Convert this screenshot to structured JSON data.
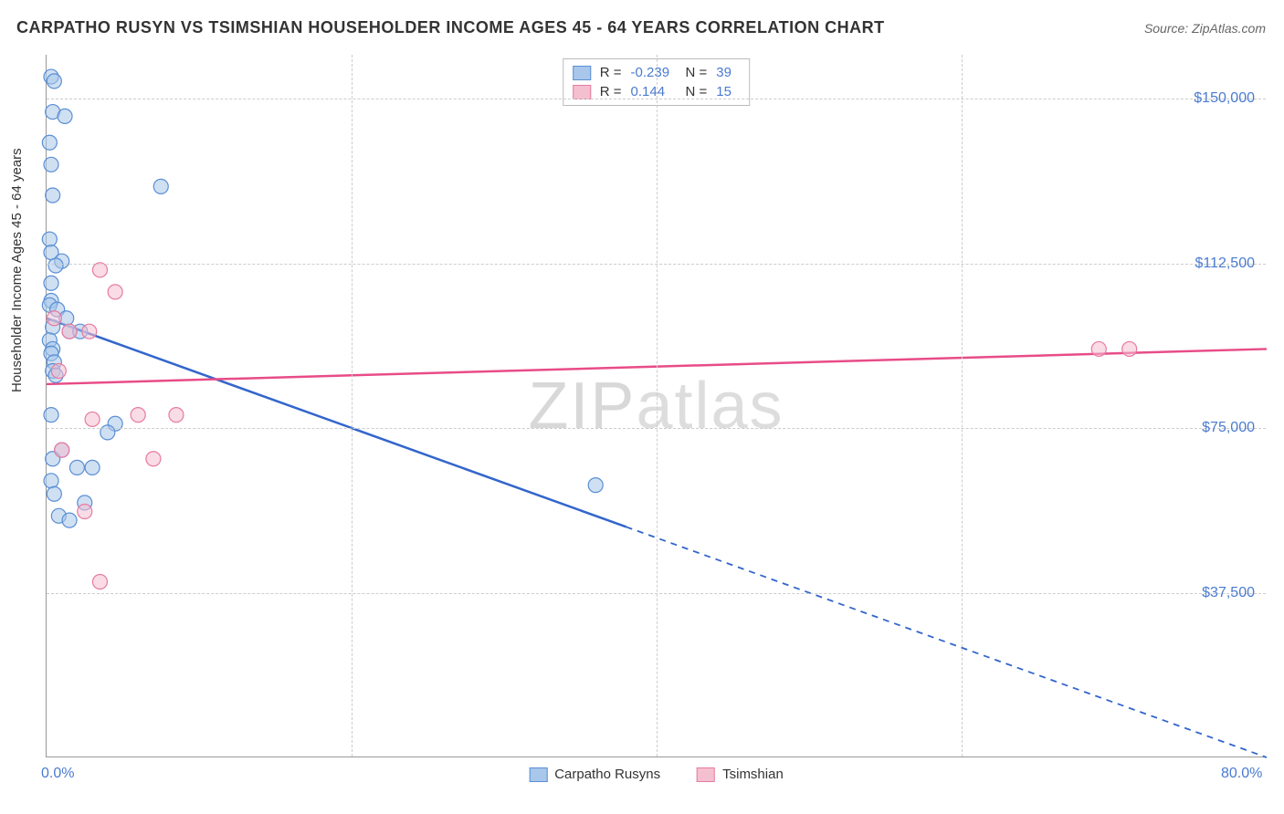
{
  "title": "CARPATHO RUSYN VS TSIMSHIAN HOUSEHOLDER INCOME AGES 45 - 64 YEARS CORRELATION CHART",
  "source": "Source: ZipAtlas.com",
  "y_axis_label": "Householder Income Ages 45 - 64 years",
  "watermark": "ZIPatlas",
  "chart": {
    "type": "scatter-with-regression",
    "xlim": [
      0,
      80
    ],
    "ylim": [
      0,
      160000
    ],
    "x_ticks": [
      {
        "v": 0,
        "label": "0.0%"
      },
      {
        "v": 80,
        "label": "80.0%"
      }
    ],
    "y_ticks": [
      {
        "v": 37500,
        "label": "$37,500"
      },
      {
        "v": 75000,
        "label": "$75,000"
      },
      {
        "v": 112500,
        "label": "$112,500"
      },
      {
        "v": 150000,
        "label": "$150,000"
      }
    ],
    "x_gridlines": [
      20,
      40,
      60
    ],
    "background_color": "#ffffff",
    "grid_color": "#cccccc",
    "marker_radius": 8,
    "marker_stroke_width": 1.2,
    "line_width": 2.5
  },
  "series": [
    {
      "name": "Carpatho Rusyns",
      "color_fill": "#a8c7ea",
      "color_stroke": "#5a8fd4",
      "line_color": "#3366cc",
      "r_value": "-0.239",
      "n_value": "39",
      "regression": {
        "x1": 0,
        "y1": 100000,
        "x2": 80,
        "y2": 0,
        "solid_until_x": 38
      },
      "points": [
        [
          0.3,
          155000
        ],
        [
          0.5,
          154000
        ],
        [
          0.4,
          147000
        ],
        [
          1.2,
          146000
        ],
        [
          0.2,
          140000
        ],
        [
          0.3,
          135000
        ],
        [
          7.5,
          130000
        ],
        [
          0.4,
          128000
        ],
        [
          0.2,
          118000
        ],
        [
          0.3,
          115000
        ],
        [
          1.0,
          113000
        ],
        [
          0.6,
          112000
        ],
        [
          0.3,
          108000
        ],
        [
          0.3,
          104000
        ],
        [
          0.2,
          103000
        ],
        [
          0.7,
          102000
        ],
        [
          1.3,
          100000
        ],
        [
          0.4,
          98000
        ],
        [
          1.5,
          97000
        ],
        [
          2.2,
          97000
        ],
        [
          0.2,
          95000
        ],
        [
          0.4,
          93000
        ],
        [
          0.3,
          92000
        ],
        [
          0.5,
          90000
        ],
        [
          0.4,
          88000
        ],
        [
          0.6,
          87000
        ],
        [
          4.5,
          76000
        ],
        [
          4.0,
          74000
        ],
        [
          1.0,
          70000
        ],
        [
          0.4,
          68000
        ],
        [
          2.0,
          66000
        ],
        [
          3.0,
          66000
        ],
        [
          0.3,
          63000
        ],
        [
          0.5,
          60000
        ],
        [
          2.5,
          58000
        ],
        [
          0.8,
          55000
        ],
        [
          1.5,
          54000
        ],
        [
          36,
          62000
        ],
        [
          0.3,
          78000
        ]
      ]
    },
    {
      "name": "Tsimshian",
      "color_fill": "#f4c0cf",
      "color_stroke": "#e77ba1",
      "line_color": "#e84c88",
      "r_value": "0.144",
      "n_value": "15",
      "regression": {
        "x1": 0,
        "y1": 85000,
        "x2": 80,
        "y2": 93000,
        "solid_until_x": 80
      },
      "points": [
        [
          3.5,
          111000
        ],
        [
          4.5,
          106000
        ],
        [
          0.5,
          100000
        ],
        [
          1.5,
          97000
        ],
        [
          2.8,
          97000
        ],
        [
          0.8,
          88000
        ],
        [
          3.0,
          77000
        ],
        [
          6.0,
          78000
        ],
        [
          8.5,
          78000
        ],
        [
          1.0,
          70000
        ],
        [
          7.0,
          68000
        ],
        [
          2.5,
          56000
        ],
        [
          3.5,
          40000
        ],
        [
          69,
          93000
        ],
        [
          71,
          93000
        ]
      ]
    }
  ],
  "stat_box": {
    "rows": [
      {
        "swatch_fill": "#a8c7ea",
        "swatch_stroke": "#5a8fd4",
        "r_label": "R =",
        "r": "-0.239",
        "n_label": "N =",
        "n": "39"
      },
      {
        "swatch_fill": "#f4c0cf",
        "swatch_stroke": "#e77ba1",
        "r_label": "R =",
        "r": "0.144",
        "n_label": "N =",
        "n": "15"
      }
    ]
  },
  "legend": [
    {
      "swatch_fill": "#a8c7ea",
      "swatch_stroke": "#5a8fd4",
      "label": "Carpatho Rusyns"
    },
    {
      "swatch_fill": "#f4c0cf",
      "swatch_stroke": "#e77ba1",
      "label": "Tsimshian"
    }
  ]
}
